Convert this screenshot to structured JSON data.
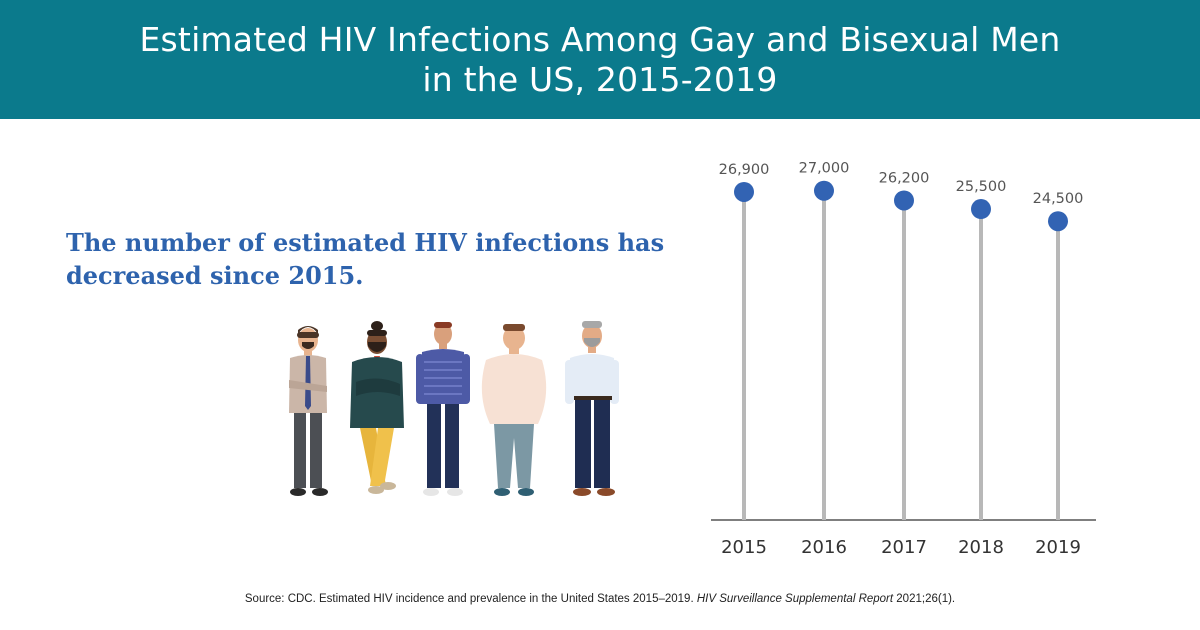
{
  "header": {
    "title_line1": "Estimated HIV Infections Among Gay and Bisexual Men",
    "title_line2": "in the US, 2015-2019"
  },
  "headline": {
    "line1": "The number of estimated HIV infections has",
    "line2": "decreased since 2015."
  },
  "illustration": {
    "icon": "group-of-five-men-illustration"
  },
  "chart_data": {
    "type": "lollipop",
    "title": "",
    "xlabel": "",
    "ylabel": "",
    "categories": [
      "2015",
      "2016",
      "2017",
      "2018",
      "2019"
    ],
    "values": [
      26900,
      27000,
      26200,
      25500,
      24500
    ],
    "value_labels": [
      "26,900",
      "27,000",
      "26,200",
      "25,500",
      "24,500"
    ],
    "ylim": [
      0,
      28700
    ],
    "grid": false,
    "legend": "none",
    "colors": {
      "marker": "#3263b3",
      "stem": "#b8b8b8",
      "axis": "#555555",
      "label": "#555555"
    }
  },
  "source": {
    "prefix": "Source: CDC. Estimated HIV incidence and prevalence in the United States 2015–2019. ",
    "italic": "HIV Surveillance Supplemental Report",
    "suffix": " 2021;26(1)."
  }
}
